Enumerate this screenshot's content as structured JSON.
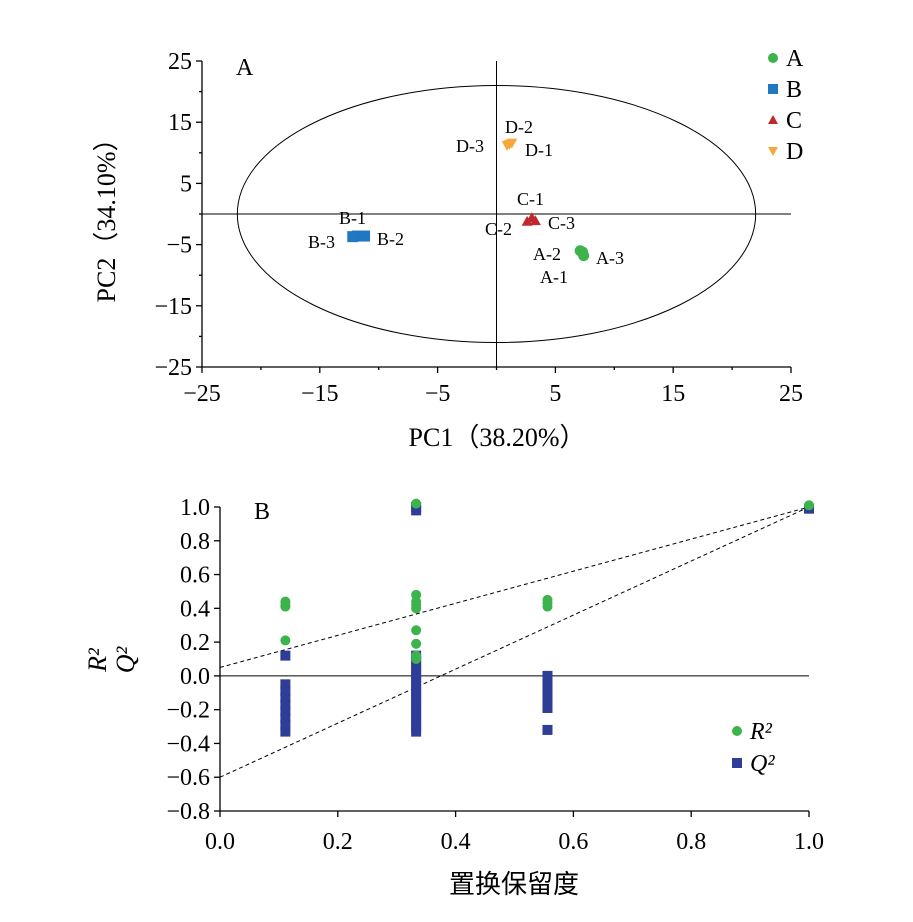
{
  "chart_data": [
    {
      "type": "scatter",
      "panel_label": "A",
      "xlabel": "PC1（38.20%）",
      "ylabel": "PC2（34.10%）",
      "xlim": [
        -25,
        25
      ],
      "ylim": [
        -25,
        25
      ],
      "xticks": [
        "−25",
        "−15",
        "−5",
        "5",
        "15",
        "25"
      ],
      "yticks": [
        "25",
        "15",
        "5",
        "−5",
        "−15",
        "−25"
      ],
      "legend_position": "top-right",
      "series": [
        {
          "name": "A",
          "color": "#3CB44B",
          "marker": "circle",
          "points": [
            {
              "x": 7.3,
              "y": -6.2,
              "label": "A-1"
            },
            {
              "x": 7.1,
              "y": -6.0,
              "label": "A-2"
            },
            {
              "x": 7.4,
              "y": -6.8,
              "label": "A-3"
            }
          ]
        },
        {
          "name": "B",
          "color": "#1F78C1",
          "marker": "square",
          "points": [
            {
              "x": -11.8,
              "y": -3.6,
              "label": "B-1"
            },
            {
              "x": -11.2,
              "y": -3.6,
              "label": "B-2"
            },
            {
              "x": -12.2,
              "y": -3.7,
              "label": "B-3"
            }
          ]
        },
        {
          "name": "C",
          "color": "#C0282E",
          "marker": "triangle",
          "points": [
            {
              "x": 3.0,
              "y": -0.6,
              "label": "C-1"
            },
            {
              "x": 2.6,
              "y": -1.2,
              "label": "C-2"
            },
            {
              "x": 3.3,
              "y": -1.1,
              "label": "C-3"
            }
          ]
        },
        {
          "name": "D",
          "color": "#F5A93B",
          "marker": "triangle-down",
          "points": [
            {
              "x": 1.1,
              "y": 11.4,
              "label": "D-1"
            },
            {
              "x": 1.3,
              "y": 11.6,
              "label": "D-2"
            },
            {
              "x": 0.9,
              "y": 11.2,
              "label": "D-3"
            }
          ]
        }
      ],
      "ellipse": {
        "cx": 0,
        "cy": 0,
        "rx": 22,
        "ry": 21
      },
      "zero_lines": true
    },
    {
      "type": "scatter",
      "panel_label": "B",
      "xlabel": "置换保留度",
      "ylabel_lines": [
        "R²",
        "Q²"
      ],
      "xlim": [
        0.0,
        1.0
      ],
      "ylim": [
        -0.8,
        1.0
      ],
      "xticks": [
        "0.0",
        "0.2",
        "0.4",
        "0.6",
        "0.8",
        "1.0"
      ],
      "yticks": [
        "1.0",
        "0.8",
        "0.6",
        "0.4",
        "0.2",
        "0.0",
        "−0.2",
        "−0.4",
        "−0.6",
        "−0.8"
      ],
      "legend_position": "bottom-right",
      "series": [
        {
          "name": "R²",
          "color": "#3CB44B",
          "marker": "circle",
          "points": [
            {
              "x": 0.111,
              "y": 0.44
            },
            {
              "x": 0.111,
              "y": 0.42
            },
            {
              "x": 0.111,
              "y": 0.41
            },
            {
              "x": 0.111,
              "y": 0.21
            },
            {
              "x": 0.333,
              "y": 1.02
            },
            {
              "x": 0.333,
              "y": 0.48
            },
            {
              "x": 0.333,
              "y": 0.44
            },
            {
              "x": 0.333,
              "y": 0.42
            },
            {
              "x": 0.333,
              "y": 0.4
            },
            {
              "x": 0.333,
              "y": 0.27
            },
            {
              "x": 0.333,
              "y": 0.19
            },
            {
              "x": 0.333,
              "y": 0.12
            },
            {
              "x": 0.333,
              "y": 0.1
            },
            {
              "x": 0.556,
              "y": 0.45
            },
            {
              "x": 0.556,
              "y": 0.43
            },
            {
              "x": 0.556,
              "y": 0.41
            },
            {
              "x": 1.0,
              "y": 1.01
            }
          ]
        },
        {
          "name": "Q²",
          "color": "#2E3D98",
          "marker": "square",
          "points": [
            {
              "x": 0.111,
              "y": 0.12
            },
            {
              "x": 0.111,
              "y": -0.05
            },
            {
              "x": 0.111,
              "y": -0.09
            },
            {
              "x": 0.111,
              "y": -0.13
            },
            {
              "x": 0.111,
              "y": -0.17
            },
            {
              "x": 0.111,
              "y": -0.21
            },
            {
              "x": 0.111,
              "y": -0.25
            },
            {
              "x": 0.111,
              "y": -0.29
            },
            {
              "x": 0.111,
              "y": -0.33
            },
            {
              "x": 0.333,
              "y": 1.0
            },
            {
              "x": 0.333,
              "y": 0.98
            },
            {
              "x": 0.333,
              "y": 0.12
            },
            {
              "x": 0.333,
              "y": 0.09
            },
            {
              "x": 0.333,
              "y": 0.06
            },
            {
              "x": 0.333,
              "y": 0.03
            },
            {
              "x": 0.333,
              "y": 0.0
            },
            {
              "x": 0.333,
              "y": -0.03
            },
            {
              "x": 0.333,
              "y": -0.06
            },
            {
              "x": 0.333,
              "y": -0.09
            },
            {
              "x": 0.333,
              "y": -0.12
            },
            {
              "x": 0.333,
              "y": -0.15
            },
            {
              "x": 0.333,
              "y": -0.18
            },
            {
              "x": 0.333,
              "y": -0.21
            },
            {
              "x": 0.333,
              "y": -0.24
            },
            {
              "x": 0.333,
              "y": -0.27
            },
            {
              "x": 0.333,
              "y": -0.3
            },
            {
              "x": 0.333,
              "y": -0.33
            },
            {
              "x": 0.556,
              "y": 0.0
            },
            {
              "x": 0.556,
              "y": -0.03
            },
            {
              "x": 0.556,
              "y": -0.06
            },
            {
              "x": 0.556,
              "y": -0.09
            },
            {
              "x": 0.556,
              "y": -0.12
            },
            {
              "x": 0.556,
              "y": -0.15
            },
            {
              "x": 0.556,
              "y": -0.19
            },
            {
              "x": 0.556,
              "y": -0.32
            },
            {
              "x": 1.0,
              "y": 0.99
            }
          ]
        }
      ],
      "regression_lines": [
        {
          "name": "R² intercept line",
          "x": [
            0.0,
            1.0
          ],
          "y": [
            0.05,
            1.0
          ]
        },
        {
          "name": "Q² intercept line",
          "x": [
            0.0,
            1.0
          ],
          "y": [
            -0.6,
            1.0
          ]
        }
      ],
      "zero_line": true
    }
  ]
}
